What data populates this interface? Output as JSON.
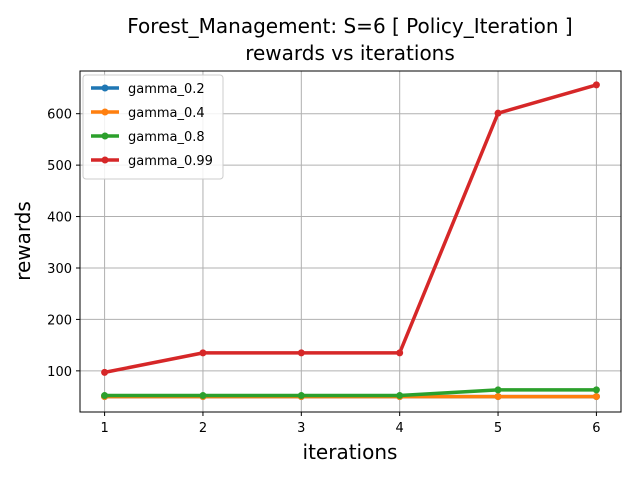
{
  "chart_data": {
    "type": "line",
    "title": "Forest_Management: S=6 [ Policy_Iteration ]",
    "subtitle": "rewards vs iterations",
    "xlabel": "iterations",
    "ylabel": "rewards",
    "x": [
      1,
      2,
      3,
      4,
      5,
      6
    ],
    "xticks": [
      "1",
      "2",
      "3",
      "4",
      "5",
      "6"
    ],
    "yticks": [
      100,
      200,
      300,
      400,
      500,
      600
    ],
    "xlim": [
      0.75,
      6.25
    ],
    "ylim": [
      20,
      683
    ],
    "grid": true,
    "legend_position": "top-left",
    "series": [
      {
        "name": "gamma_0.2",
        "color": "#1f77b4",
        "values": [
          50,
          50,
          50,
          50,
          50,
          50
        ]
      },
      {
        "name": "gamma_0.4",
        "color": "#ff7f0e",
        "values": [
          50,
          50,
          50,
          50,
          50,
          50
        ]
      },
      {
        "name": "gamma_0.8",
        "color": "#2ca02c",
        "values": [
          52,
          52,
          52,
          52,
          63,
          63
        ]
      },
      {
        "name": "gamma_0.99",
        "color": "#d62728",
        "values": [
          97,
          135,
          135,
          135,
          601,
          656
        ]
      }
    ]
  }
}
